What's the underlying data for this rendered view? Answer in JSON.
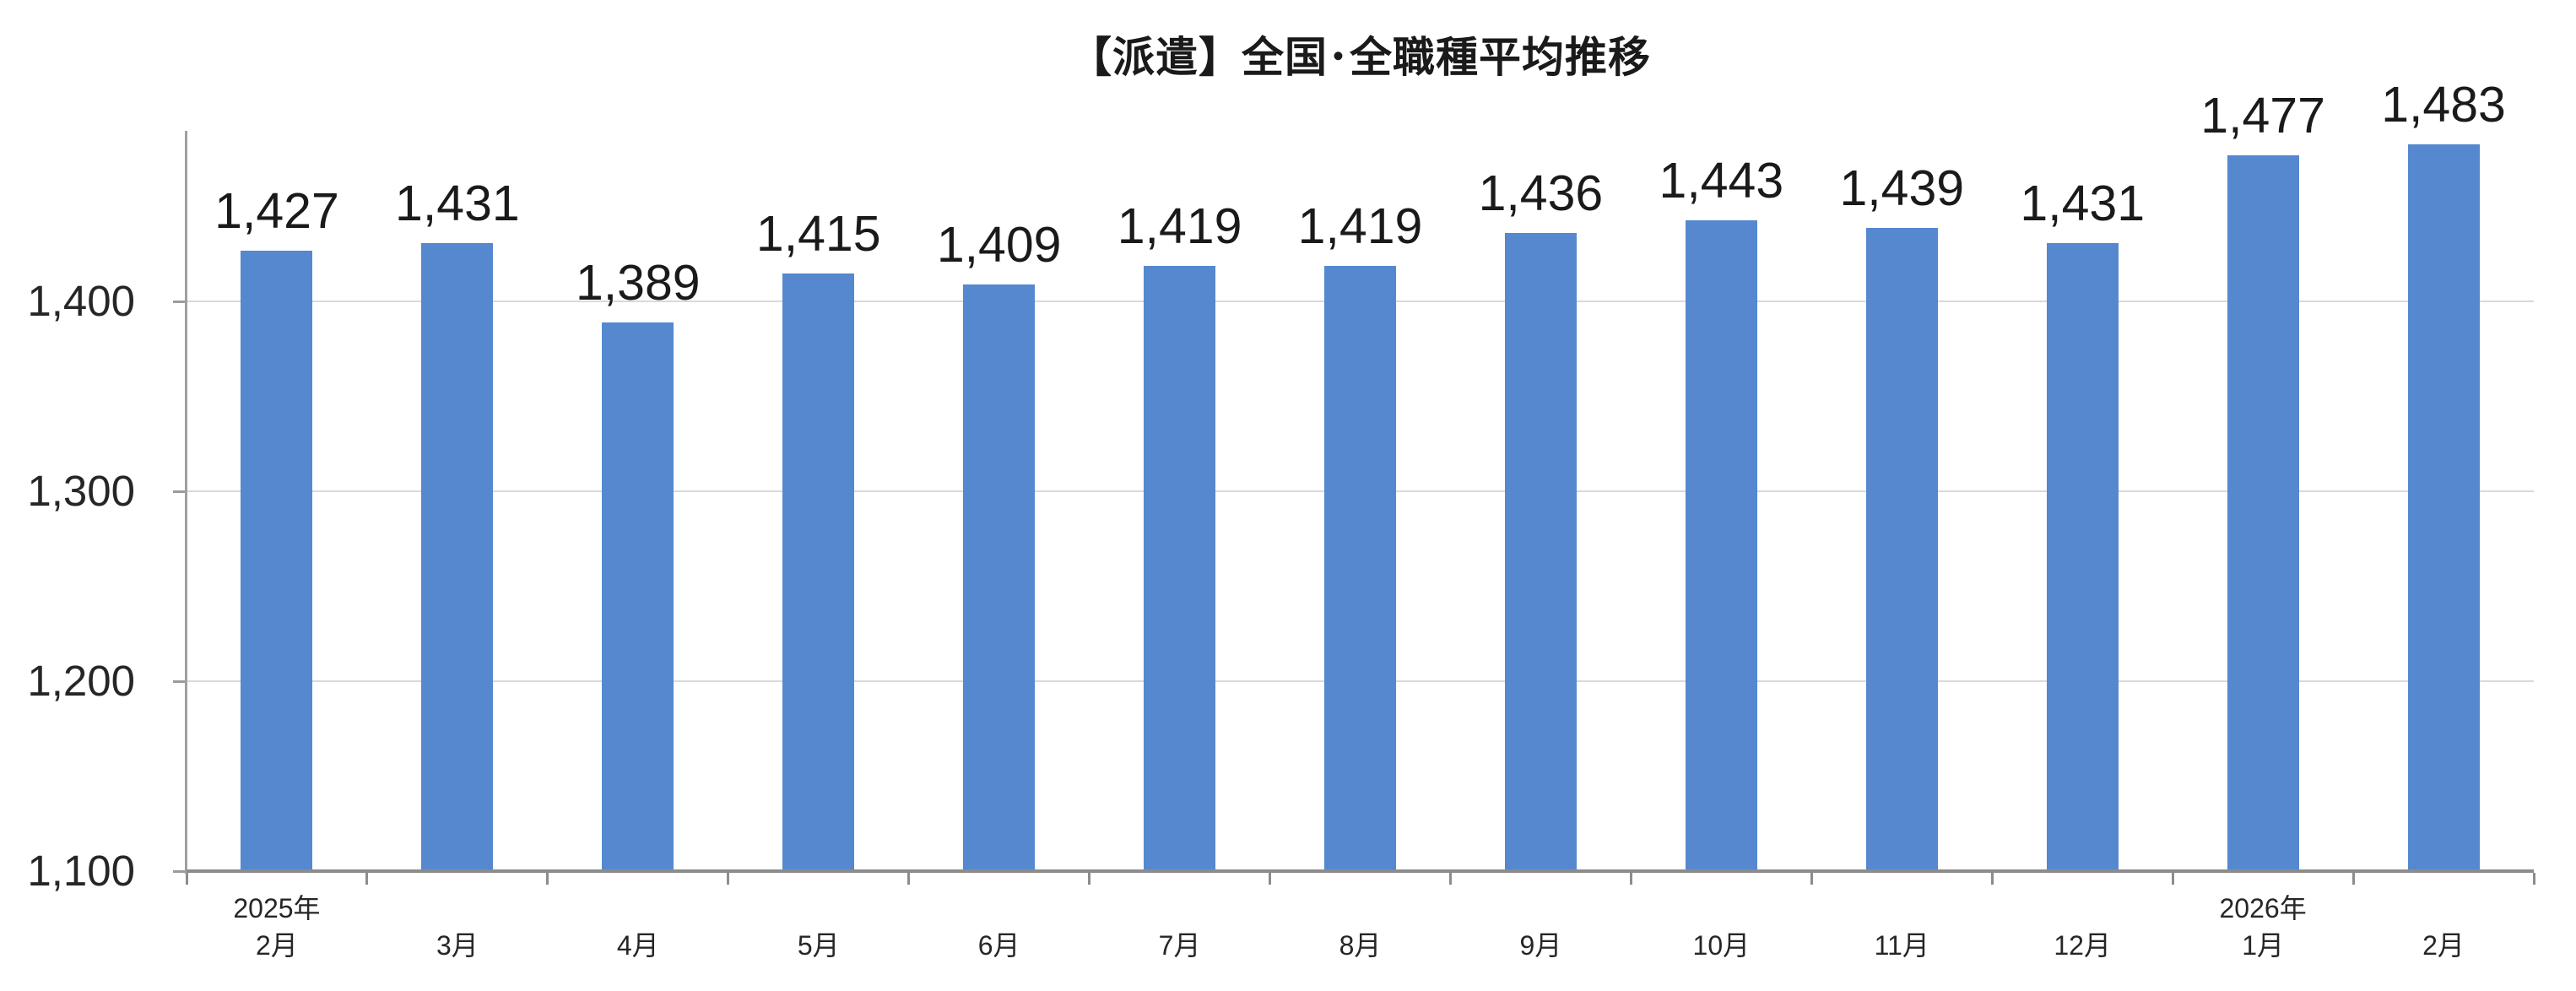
{
  "chart_data": {
    "type": "bar",
    "title": "【派遣】全国･全職種平均推移",
    "categories": [
      "2月",
      "3月",
      "4月",
      "5月",
      "6月",
      "7月",
      "8月",
      "9月",
      "10月",
      "11月",
      "12月",
      "1月",
      "2月"
    ],
    "year_annotations": [
      {
        "category_index": 0,
        "label": "2025年"
      },
      {
        "category_index": 11,
        "label": "2026年"
      }
    ],
    "values": [
      1427,
      1431,
      1389,
      1415,
      1409,
      1419,
      1419,
      1436,
      1443,
      1439,
      1431,
      1477,
      1483
    ],
    "data_labels": [
      "1,427",
      "1,431",
      "1,389",
      "1,415",
      "1,409",
      "1,419",
      "1,419",
      "1,436",
      "1,443",
      "1,439",
      "1,431",
      "1,477",
      "1,483"
    ],
    "xlabel": "",
    "ylabel": "",
    "y_axis": {
      "min": 1100,
      "max": 1490,
      "tick_interval": 100,
      "tick_labels": [
        "1,100",
        "1,200",
        "1,300",
        "1,400"
      ]
    },
    "grid": true,
    "legend_position": "none",
    "colors": {
      "bar": "#5588CF",
      "gridline": "#D9D9D9",
      "y_axis_line": "#A0A0A0",
      "x_axis_line": "#8C8C8C",
      "tick": "#9B9B9B",
      "title_text": "#1A1A1A",
      "data_label_text": "#1A1A1A",
      "axis_label_text": "#262626"
    }
  }
}
